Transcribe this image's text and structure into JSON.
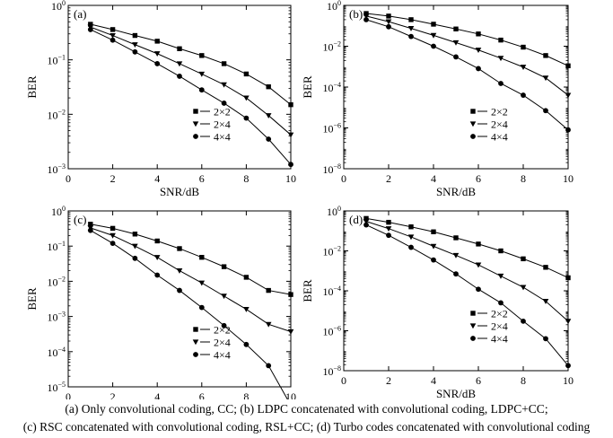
{
  "caption": {
    "line1": "(a)  Only convolutional coding, CC; (b) LDPC concatenated with convolutional coding, LDPC+CC;",
    "line2": "(c) RSC concatenated with convolutional coding, RSL+CC; (d) Turbo codes concatenated with convolutional coding"
  },
  "chart_data": [
    {
      "type": "line",
      "panel_label": "(a)",
      "xlabel": "SNR/dB",
      "ylabel": "BER",
      "y_scale": "log",
      "xlim": [
        0,
        10
      ],
      "ylim": [
        0.001,
        1
      ],
      "x_ticks": [
        "0",
        "2",
        "4",
        "6",
        "8",
        "10"
      ],
      "y_tick_exponents": [
        0,
        -1,
        -2,
        -3
      ],
      "legend_position": "lower-right",
      "x": [
        1,
        2,
        3,
        4,
        5,
        6,
        7,
        8,
        9,
        10
      ],
      "series": [
        {
          "name": "2×2",
          "marker": "square",
          "values": [
            0.45,
            0.36,
            0.28,
            0.22,
            0.16,
            0.12,
            0.085,
            0.055,
            0.032,
            0.015
          ]
        },
        {
          "name": "2×4",
          "marker": "triangle-down",
          "values": [
            0.4,
            0.28,
            0.19,
            0.13,
            0.085,
            0.055,
            0.035,
            0.02,
            0.0095,
            0.0042
          ]
        },
        {
          "name": "4×4",
          "marker": "circle",
          "values": [
            0.36,
            0.23,
            0.14,
            0.085,
            0.05,
            0.028,
            0.016,
            0.0085,
            0.0035,
            0.0012
          ]
        }
      ]
    },
    {
      "type": "line",
      "panel_label": "(b)",
      "xlabel": "SNR/dB",
      "ylabel": "BER",
      "y_scale": "log",
      "xlim": [
        0,
        10
      ],
      "ylim": [
        1e-08,
        1
      ],
      "x_ticks": [
        "0",
        "2",
        "4",
        "6",
        "8",
        "10"
      ],
      "y_tick_exponents": [
        0,
        -2,
        -4,
        -6,
        -8
      ],
      "legend_position": "lower-right",
      "x": [
        1,
        2,
        3,
        4,
        5,
        6,
        7,
        8,
        9,
        10
      ],
      "series": [
        {
          "name": "2×2",
          "marker": "square",
          "values": [
            0.4,
            0.3,
            0.2,
            0.12,
            0.07,
            0.04,
            0.02,
            0.009,
            0.0035,
            0.0011
          ]
        },
        {
          "name": "2×4",
          "marker": "triangle-down",
          "values": [
            0.3,
            0.16,
            0.075,
            0.034,
            0.015,
            0.0065,
            0.0026,
            0.00095,
            0.00028,
            4e-05
          ]
        },
        {
          "name": "4×4",
          "marker": "circle",
          "values": [
            0.2,
            0.09,
            0.03,
            0.01,
            0.003,
            0.0008,
            0.00015,
            4e-05,
            7e-06,
            8e-07
          ]
        }
      ]
    },
    {
      "type": "line",
      "panel_label": "(c)",
      "xlabel": "SNR/dB",
      "ylabel": "BER",
      "y_scale": "log",
      "xlim": [
        0,
        10
      ],
      "ylim": [
        1e-05,
        1
      ],
      "x_ticks": [
        "0",
        "2",
        "4",
        "6",
        "8",
        "10"
      ],
      "y_tick_exponents": [
        0,
        -1,
        -2,
        -3,
        -4,
        -5
      ],
      "legend_position": "lower-right",
      "x": [
        1,
        2,
        3,
        4,
        5,
        6,
        7,
        8,
        9,
        10
      ],
      "series": [
        {
          "name": "2×2",
          "marker": "square",
          "values": [
            0.42,
            0.32,
            0.22,
            0.14,
            0.085,
            0.048,
            0.026,
            0.013,
            0.0055,
            0.0042
          ]
        },
        {
          "name": "2×4",
          "marker": "triangle-down",
          "values": [
            0.33,
            0.2,
            0.1,
            0.048,
            0.02,
            0.009,
            0.0038,
            0.0016,
            0.0006,
            0.00037
          ]
        },
        {
          "name": "4×4",
          "marker": "circle",
          "values": [
            0.28,
            0.12,
            0.045,
            0.015,
            0.0055,
            0.0018,
            0.00055,
            0.00016,
            4e-05,
            3e-06
          ]
        }
      ]
    },
    {
      "type": "line",
      "panel_label": "(d)",
      "xlabel": "SNR/dB",
      "ylabel": "BER",
      "y_scale": "log",
      "xlim": [
        0,
        10
      ],
      "ylim": [
        1e-08,
        1
      ],
      "x_ticks": [
        "0",
        "2",
        "4",
        "6",
        "8",
        "10"
      ],
      "y_tick_exponents": [
        0,
        -2,
        -4,
        -6,
        -8
      ],
      "legend_position": "lower-right",
      "x": [
        1,
        2,
        3,
        4,
        5,
        6,
        7,
        8,
        9,
        10
      ],
      "series": [
        {
          "name": "2×2",
          "marker": "square",
          "values": [
            0.42,
            0.27,
            0.16,
            0.09,
            0.045,
            0.022,
            0.01,
            0.004,
            0.0015,
            0.00045
          ]
        },
        {
          "name": "2×4",
          "marker": "triangle-down",
          "values": [
            0.3,
            0.13,
            0.05,
            0.017,
            0.006,
            0.002,
            0.00055,
            0.00015,
            3e-05,
            3e-06
          ]
        },
        {
          "name": "4×4",
          "marker": "circle",
          "values": [
            0.2,
            0.06,
            0.015,
            0.0035,
            0.0007,
            0.00012,
            2.5e-05,
            3e-06,
            4e-07,
            1.8e-08
          ]
        }
      ]
    }
  ]
}
